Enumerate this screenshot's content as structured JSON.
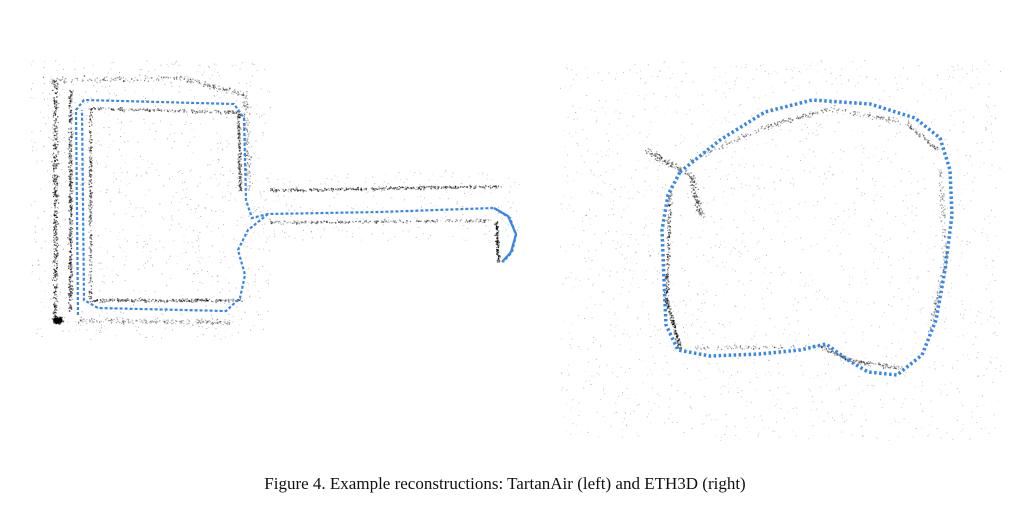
{
  "caption": "Figure 4. Example reconstructions: TartanAir (left) and ETH3D (right)",
  "colors": {
    "trajectory": "#3a86e8",
    "points": "#000000",
    "background": "#ffffff"
  },
  "panels": [
    {
      "dataset": "TartanAir",
      "side": "left"
    },
    {
      "dataset": "ETH3D",
      "side": "right"
    }
  ]
}
